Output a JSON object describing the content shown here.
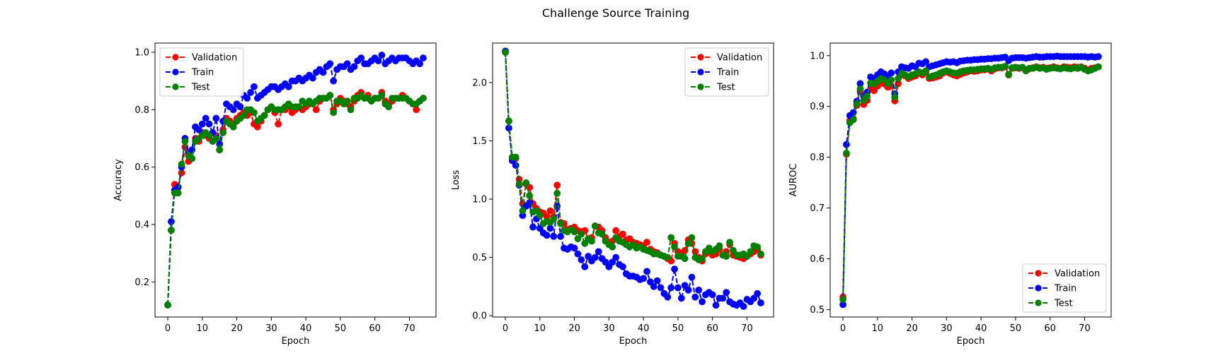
{
  "figure": {
    "title": "Challenge Source Training"
  },
  "chart_data": [
    {
      "type": "line",
      "marker": "circle",
      "linestyle": "dashed",
      "xlabel": "Epoch",
      "ylabel": "Accuracy",
      "xlim": [
        -3.7,
        77.7
      ],
      "ylim": [
        0.078,
        1.032
      ],
      "xticks": [
        0,
        10,
        20,
        30,
        40,
        50,
        60,
        70
      ],
      "yticks": [
        0.2,
        0.4,
        0.6,
        0.8,
        1.0
      ],
      "ytick_labels": [
        "0.2",
        "0.4",
        "0.6",
        "0.8",
        "1.0"
      ],
      "legend": {
        "placement": "upper left",
        "entries": [
          "Validation",
          "Train",
          "Test"
        ]
      },
      "x_start": 0,
      "series": [
        {
          "name": "Validation",
          "color": "#ff0000",
          "values": [
            0.12,
            0.38,
            0.54,
            0.53,
            0.58,
            0.67,
            0.62,
            0.63,
            0.7,
            0.69,
            0.72,
            0.71,
            0.7,
            0.69,
            0.71,
            0.66,
            0.73,
            0.77,
            0.76,
            0.75,
            0.77,
            0.78,
            0.79,
            0.78,
            0.79,
            0.75,
            0.74,
            0.76,
            0.78,
            0.8,
            0.81,
            0.79,
            0.75,
            0.8,
            0.8,
            0.81,
            0.79,
            0.8,
            0.81,
            0.8,
            0.81,
            0.82,
            0.82,
            0.8,
            0.83,
            0.84,
            0.84,
            0.85,
            0.8,
            0.82,
            0.84,
            0.83,
            0.82,
            0.81,
            0.83,
            0.85,
            0.86,
            0.84,
            0.85,
            0.83,
            0.84,
            0.84,
            0.86,
            0.83,
            0.82,
            0.83,
            0.84,
            0.84,
            0.85,
            0.84,
            0.83,
            0.82,
            0.8,
            0.83,
            0.84
          ]
        },
        {
          "name": "Train",
          "color": "#0000ff",
          "values": [
            0.12,
            0.41,
            0.52,
            0.53,
            0.6,
            0.7,
            0.65,
            0.66,
            0.74,
            0.73,
            0.75,
            0.77,
            0.75,
            0.72,
            0.77,
            0.68,
            0.76,
            0.82,
            0.81,
            0.8,
            0.82,
            0.81,
            0.85,
            0.84,
            0.86,
            0.88,
            0.84,
            0.85,
            0.86,
            0.87,
            0.88,
            0.88,
            0.87,
            0.88,
            0.89,
            0.88,
            0.9,
            0.9,
            0.91,
            0.9,
            0.91,
            0.92,
            0.91,
            0.93,
            0.94,
            0.93,
            0.95,
            0.96,
            0.9,
            0.94,
            0.95,
            0.95,
            0.96,
            0.94,
            0.95,
            0.97,
            0.98,
            0.96,
            0.96,
            0.97,
            0.98,
            0.97,
            0.99,
            0.96,
            0.97,
            0.98,
            0.97,
            0.98,
            0.98,
            0.98,
            0.97,
            0.96,
            0.97,
            0.96,
            0.98
          ]
        },
        {
          "name": "Test",
          "color": "#008000",
          "values": [
            0.12,
            0.38,
            0.51,
            0.51,
            0.61,
            0.69,
            0.64,
            0.63,
            0.69,
            0.7,
            0.71,
            0.72,
            0.71,
            0.69,
            0.7,
            0.66,
            0.72,
            0.76,
            0.75,
            0.74,
            0.76,
            0.77,
            0.78,
            0.8,
            0.8,
            0.79,
            0.76,
            0.77,
            0.78,
            0.8,
            0.81,
            0.8,
            0.8,
            0.8,
            0.81,
            0.82,
            0.81,
            0.81,
            0.81,
            0.83,
            0.82,
            0.83,
            0.82,
            0.83,
            0.84,
            0.84,
            0.84,
            0.85,
            0.79,
            0.83,
            0.83,
            0.82,
            0.83,
            0.8,
            0.84,
            0.84,
            0.85,
            0.84,
            0.84,
            0.83,
            0.84,
            0.84,
            0.85,
            0.82,
            0.81,
            0.84,
            0.84,
            0.84,
            0.84,
            0.84,
            0.83,
            0.82,
            0.82,
            0.83,
            0.84
          ]
        }
      ]
    },
    {
      "type": "line",
      "marker": "circle",
      "linestyle": "dashed",
      "xlabel": "Epoch",
      "ylabel": "Loss",
      "xlim": [
        -3.7,
        77.7
      ],
      "ylim": [
        -0.011,
        2.339
      ],
      "xticks": [
        0,
        10,
        20,
        30,
        40,
        50,
        60,
        70
      ],
      "yticks": [
        0.0,
        0.5,
        1.0,
        1.5,
        2.0
      ],
      "ytick_labels": [
        "0.0",
        "0.5",
        "1.0",
        "1.5",
        "2.0"
      ],
      "legend": {
        "placement": "upper right",
        "entries": [
          "Validation",
          "Train",
          "Test"
        ]
      },
      "x_start": 0,
      "series": [
        {
          "name": "Validation",
          "color": "#ff0000",
          "values": [
            2.26,
            1.67,
            1.35,
            1.35,
            1.17,
            0.96,
            1.13,
            1.1,
            0.96,
            0.92,
            0.89,
            0.88,
            0.85,
            0.9,
            0.85,
            1.12,
            0.8,
            0.79,
            0.74,
            0.75,
            0.76,
            0.73,
            0.72,
            0.73,
            0.66,
            0.67,
            0.77,
            0.76,
            0.73,
            0.67,
            0.63,
            0.64,
            0.73,
            0.68,
            0.7,
            0.65,
            0.66,
            0.63,
            0.62,
            0.61,
            0.6,
            0.63,
            0.57,
            0.55,
            0.54,
            0.52,
            0.51,
            0.49,
            0.47,
            0.62,
            0.55,
            0.53,
            0.56,
            0.65,
            0.62,
            0.55,
            0.5,
            0.47,
            0.53,
            0.55,
            0.52,
            0.53,
            0.57,
            0.52,
            0.55,
            0.61,
            0.52,
            0.51,
            0.5,
            0.49,
            0.51,
            0.53,
            0.55,
            0.57,
            0.52
          ]
        },
        {
          "name": "Train",
          "color": "#0000ff",
          "values": [
            2.27,
            1.61,
            1.33,
            1.29,
            1.12,
            0.86,
            0.94,
            0.97,
            0.76,
            0.83,
            0.75,
            0.71,
            0.69,
            0.75,
            0.68,
            0.94,
            0.68,
            0.58,
            0.57,
            0.59,
            0.58,
            0.53,
            0.48,
            0.42,
            0.51,
            0.47,
            0.5,
            0.55,
            0.49,
            0.46,
            0.42,
            0.46,
            0.5,
            0.44,
            0.42,
            0.36,
            0.34,
            0.34,
            0.33,
            0.31,
            0.32,
            0.38,
            0.29,
            0.25,
            0.3,
            0.24,
            0.19,
            0.16,
            0.24,
            0.4,
            0.24,
            0.15,
            0.26,
            0.22,
            0.33,
            0.16,
            0.22,
            0.12,
            0.18,
            0.2,
            0.18,
            0.09,
            0.15,
            0.15,
            0.2,
            0.12,
            0.1,
            0.09,
            0.11,
            0.08,
            0.14,
            0.12,
            0.15,
            0.19,
            0.11
          ]
        },
        {
          "name": "Test",
          "color": "#008000",
          "values": [
            2.26,
            1.67,
            1.36,
            1.36,
            1.13,
            0.9,
            1.14,
            1.03,
            0.89,
            0.9,
            0.86,
            0.79,
            0.81,
            0.8,
            0.83,
            1.05,
            0.79,
            0.73,
            0.72,
            0.74,
            0.72,
            0.66,
            0.7,
            0.62,
            0.66,
            0.64,
            0.77,
            0.71,
            0.7,
            0.64,
            0.61,
            0.59,
            0.67,
            0.64,
            0.63,
            0.61,
            0.59,
            0.61,
            0.58,
            0.59,
            0.57,
            0.56,
            0.55,
            0.53,
            0.53,
            0.52,
            0.51,
            0.5,
            0.67,
            0.59,
            0.51,
            0.51,
            0.49,
            0.62,
            0.67,
            0.5,
            0.48,
            0.49,
            0.55,
            0.58,
            0.55,
            0.57,
            0.6,
            0.52,
            0.51,
            0.63,
            0.56,
            0.52,
            0.52,
            0.53,
            0.51,
            0.55,
            0.6,
            0.59,
            0.53
          ]
        }
      ]
    },
    {
      "type": "line",
      "marker": "circle",
      "linestyle": "dashed",
      "xlabel": "Epoch",
      "ylabel": "AUROC",
      "xlim": [
        -3.7,
        77.7
      ],
      "ylim": [
        0.4855,
        1.0247
      ],
      "xticks": [
        0,
        10,
        20,
        30,
        40,
        50,
        60,
        70
      ],
      "yticks": [
        0.5,
        0.6,
        0.7,
        0.8,
        0.9,
        1.0
      ],
      "ytick_labels": [
        "0.5",
        "0.6",
        "0.7",
        "0.8",
        "0.9",
        "1.0"
      ],
      "legend": {
        "placement": "lower right",
        "entries": [
          "Validation",
          "Train",
          "Test"
        ]
      },
      "x_start": 0,
      "series": [
        {
          "name": "Validation",
          "color": "#ff0000",
          "values": [
            0.525,
            0.806,
            0.872,
            0.876,
            0.902,
            0.929,
            0.904,
            0.912,
            0.934,
            0.931,
            0.94,
            0.946,
            0.944,
            0.938,
            0.94,
            0.911,
            0.945,
            0.962,
            0.96,
            0.955,
            0.958,
            0.96,
            0.965,
            0.962,
            0.968,
            0.955,
            0.956,
            0.958,
            0.96,
            0.966,
            0.968,
            0.965,
            0.962,
            0.96,
            0.963,
            0.966,
            0.968,
            0.97,
            0.969,
            0.97,
            0.972,
            0.972,
            0.974,
            0.97,
            0.974,
            0.976,
            0.976,
            0.978,
            0.962,
            0.975,
            0.976,
            0.975,
            0.976,
            0.972,
            0.974,
            0.976,
            0.978,
            0.976,
            0.977,
            0.975,
            0.976,
            0.978,
            0.976,
            0.975,
            0.978,
            0.977,
            0.976,
            0.978,
            0.977,
            0.978,
            0.975,
            0.972,
            0.975,
            0.976,
            0.978
          ]
        },
        {
          "name": "Train",
          "color": "#0000ff",
          "values": [
            0.51,
            0.825,
            0.882,
            0.888,
            0.91,
            0.945,
            0.92,
            0.928,
            0.958,
            0.955,
            0.962,
            0.968,
            0.964,
            0.958,
            0.966,
            0.925,
            0.968,
            0.978,
            0.976,
            0.975,
            0.98,
            0.978,
            0.985,
            0.984,
            0.988,
            0.978,
            0.98,
            0.982,
            0.984,
            0.986,
            0.988,
            0.987,
            0.988,
            0.986,
            0.989,
            0.99,
            0.991,
            0.991,
            0.992,
            0.992,
            0.993,
            0.993,
            0.994,
            0.994,
            0.995,
            0.995,
            0.996,
            0.997,
            0.99,
            0.995,
            0.996,
            0.996,
            0.996,
            0.995,
            0.996,
            0.997,
            0.998,
            0.997,
            0.997,
            0.998,
            0.998,
            0.998,
            0.999,
            0.998,
            0.998,
            0.998,
            0.998,
            0.998,
            0.998,
            0.998,
            0.998,
            0.997,
            0.998,
            0.997,
            0.998
          ]
        },
        {
          "name": "Test",
          "color": "#008000",
          "values": [
            0.52,
            0.808,
            0.868,
            0.874,
            0.905,
            0.935,
            0.912,
            0.92,
            0.946,
            0.944,
            0.95,
            0.955,
            0.952,
            0.945,
            0.952,
            0.918,
            0.955,
            0.965,
            0.962,
            0.958,
            0.962,
            0.964,
            0.968,
            0.966,
            0.97,
            0.958,
            0.96,
            0.962,
            0.965,
            0.968,
            0.97,
            0.968,
            0.966,
            0.965,
            0.968,
            0.97,
            0.971,
            0.972,
            0.972,
            0.973,
            0.974,
            0.974,
            0.975,
            0.973,
            0.976,
            0.977,
            0.977,
            0.979,
            0.963,
            0.976,
            0.977,
            0.976,
            0.977,
            0.97,
            0.975,
            0.975,
            0.977,
            0.975,
            0.976,
            0.973,
            0.975,
            0.976,
            0.975,
            0.974,
            0.976,
            0.975,
            0.974,
            0.976,
            0.975,
            0.977,
            0.973,
            0.97,
            0.972,
            0.975,
            0.978
          ]
        }
      ]
    }
  ]
}
